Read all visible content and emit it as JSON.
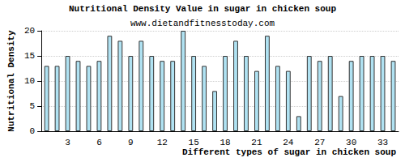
{
  "chart_data": {
    "type": "bar",
    "title": "Nutritional Density Value in sugar in chicken soup",
    "subtitle": "www.dietandfitnesstoday.com",
    "x_label": "Different types of sugar in chicken soup",
    "y_label": "Nutritional Density",
    "categories": [
      null,
      null,
      "3",
      null,
      null,
      "6",
      null,
      null,
      "9",
      null,
      null,
      "12",
      null,
      null,
      "15",
      null,
      null,
      "18",
      null,
      null,
      "21",
      null,
      null,
      "24",
      null,
      null,
      "27",
      null,
      null,
      "30",
      null,
      null,
      "33",
      null
    ],
    "values": [
      13,
      13,
      15,
      14,
      13,
      14,
      19,
      18,
      15,
      18,
      15,
      14,
      14,
      20,
      15,
      13,
      8,
      15,
      18,
      15,
      12,
      19,
      13,
      12,
      3,
      15,
      14,
      15,
      7,
      14,
      15,
      15,
      15,
      14
    ],
    "color": "#b0e2f2",
    "ylim": [
      0,
      20
    ],
    "yticks": [
      0,
      5,
      10,
      15,
      20
    ],
    "grid": true
  }
}
